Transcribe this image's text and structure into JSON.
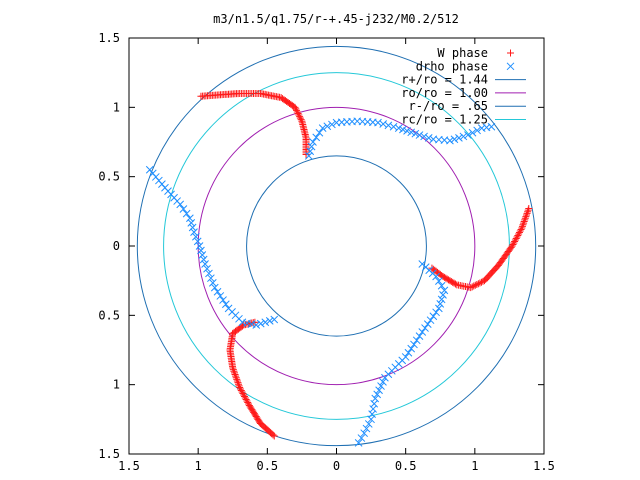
{
  "chart_data": {
    "type": "scatter",
    "title": "m3/n1.5/q1.75/r-+.45-j232/M0.2/512",
    "xlabel": "",
    "ylabel": "",
    "xlim": [
      -1.5,
      1.5
    ],
    "ylim": [
      -1.5,
      1.5
    ],
    "x_ticks": [
      -1.5,
      -1,
      -0.5,
      0,
      0.5,
      1,
      1.5
    ],
    "x_tick_labels": [
      "1.5",
      "1",
      "0.5",
      "0",
      "0.5",
      "1",
      "1.5"
    ],
    "y_ticks": [
      1.5,
      1,
      0.5,
      0,
      -0.5,
      -1,
      -1.5
    ],
    "y_tick_labels": [
      "1.5",
      "1",
      "0.5",
      "0",
      "0.5",
      "1",
      "1.5"
    ],
    "grid": false,
    "legend_position": "top-right",
    "circles": [
      {
        "name": "r+/ro = 1.44",
        "radius": 1.44,
        "color": "#1f6fb2"
      },
      {
        "name": "ro/ro = 1.00",
        "radius": 1.0,
        "color": "#a01fb0"
      },
      {
        "name": "r-/ro = .65",
        "radius": 0.65,
        "color": "#1f6fb2"
      },
      {
        "name": "rc/ro = 1.25",
        "radius": 1.25,
        "color": "#24c8d8"
      }
    ],
    "series": [
      {
        "name": "W phase",
        "marker": "+",
        "color": "#ff1a1a",
        "arms": [
          [
            [
              -0.98,
              1.08
            ],
            [
              -0.85,
              1.09
            ],
            [
              -0.7,
              1.1
            ],
            [
              -0.55,
              1.1
            ],
            [
              -0.4,
              1.07
            ],
            [
              -0.3,
              1.0
            ],
            [
              -0.25,
              0.9
            ],
            [
              -0.22,
              0.78
            ],
            [
              -0.22,
              0.66
            ]
          ],
          [
            [
              1.39,
              0.27
            ],
            [
              1.34,
              0.13
            ],
            [
              1.27,
              0.0
            ],
            [
              1.17,
              -0.14
            ],
            [
              1.07,
              -0.25
            ],
            [
              0.97,
              -0.3
            ],
            [
              0.87,
              -0.28
            ],
            [
              0.77,
              -0.22
            ],
            [
              0.69,
              -0.16
            ]
          ],
          [
            [
              -0.45,
              -1.37
            ],
            [
              -0.55,
              -1.28
            ],
            [
              -0.63,
              -1.15
            ],
            [
              -0.7,
              -1.02
            ],
            [
              -0.75,
              -0.88
            ],
            [
              -0.77,
              -0.75
            ],
            [
              -0.75,
              -0.63
            ],
            [
              -0.67,
              -0.57
            ],
            [
              -0.59,
              -0.55
            ]
          ]
        ]
      },
      {
        "name": "drho phase",
        "marker": "x",
        "color": "#1f8fff",
        "arms": [
          [
            [
              -0.2,
              0.65
            ],
            [
              -0.17,
              0.75
            ],
            [
              -0.1,
              0.85
            ],
            [
              0.0,
              0.89
            ],
            [
              0.15,
              0.9
            ],
            [
              0.3,
              0.89
            ],
            [
              0.45,
              0.85
            ],
            [
              0.6,
              0.8
            ],
            [
              0.7,
              0.77
            ],
            [
              0.82,
              0.76
            ],
            [
              0.95,
              0.8
            ],
            [
              1.05,
              0.85
            ],
            [
              1.12,
              0.86
            ]
          ],
          [
            [
              0.62,
              -0.13
            ],
            [
              0.72,
              -0.22
            ],
            [
              0.78,
              -0.32
            ],
            [
              0.74,
              -0.45
            ],
            [
              0.62,
              -0.62
            ],
            [
              0.5,
              -0.8
            ],
            [
              0.35,
              -0.95
            ],
            [
              0.28,
              -1.1
            ],
            [
              0.25,
              -1.25
            ],
            [
              0.2,
              -1.35
            ],
            [
              0.16,
              -1.42
            ]
          ],
          [
            [
              -0.45,
              -0.53
            ],
            [
              -0.58,
              -0.57
            ],
            [
              -0.68,
              -0.55
            ],
            [
              -0.78,
              -0.45
            ],
            [
              -0.88,
              -0.3
            ],
            [
              -0.95,
              -0.13
            ],
            [
              -0.99,
              0.0
            ],
            [
              -1.03,
              0.1
            ],
            [
              -1.06,
              0.2
            ],
            [
              -1.13,
              0.3
            ],
            [
              -1.24,
              0.42
            ],
            [
              -1.35,
              0.55
            ]
          ]
        ]
      }
    ]
  }
}
